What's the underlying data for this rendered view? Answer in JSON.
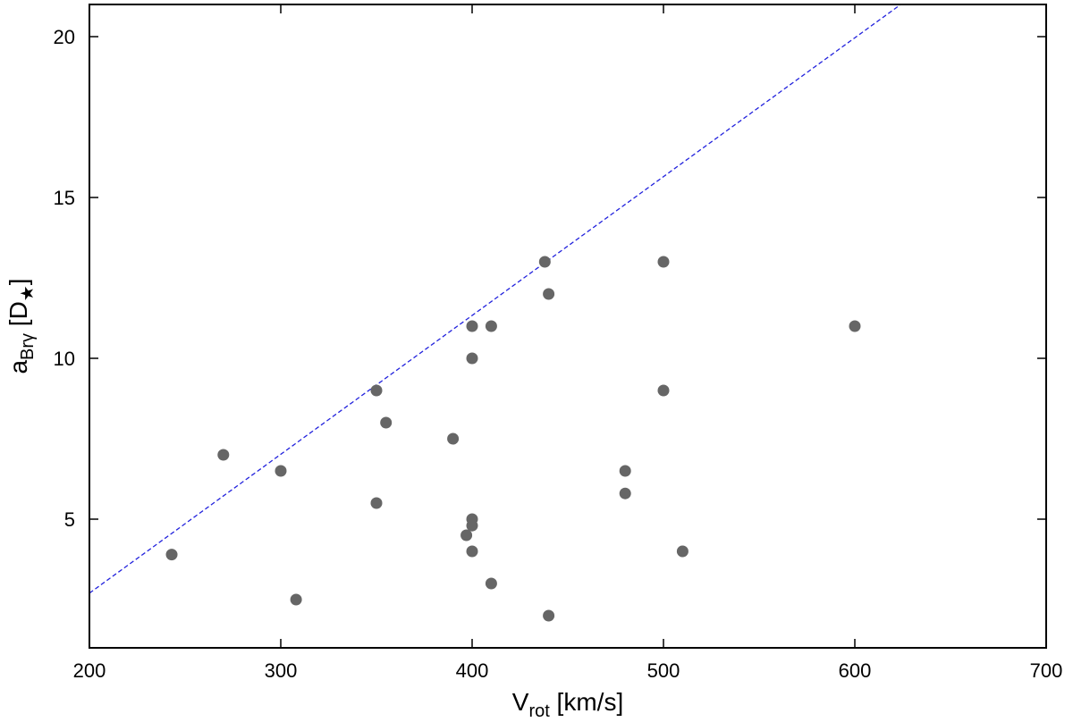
{
  "chart_data": {
    "type": "scatter",
    "title": "",
    "xlabel": {
      "main": "V",
      "sub": "rot",
      "rest": " [km/s]"
    },
    "ylabel": {
      "main": "a",
      "sub": "Brγ",
      "rest": " [D",
      "sub2": "★",
      "end": "]"
    },
    "xlim": [
      200,
      700
    ],
    "ylim": [
      1,
      21
    ],
    "xticks": [
      200,
      300,
      400,
      500,
      600,
      700
    ],
    "yticks": [
      5,
      10,
      15,
      20
    ],
    "grid": false,
    "legend": false,
    "point_color": "#666666",
    "line_color": "#2222dd",
    "fit_line": {
      "x": [
        200,
        624
      ],
      "y": [
        2.7,
        21
      ]
    },
    "points": [
      {
        "x": 243,
        "y": 3.9
      },
      {
        "x": 270,
        "y": 7.0
      },
      {
        "x": 300,
        "y": 6.5
      },
      {
        "x": 308,
        "y": 2.5
      },
      {
        "x": 350,
        "y": 9.0
      },
      {
        "x": 350,
        "y": 5.5
      },
      {
        "x": 355,
        "y": 8.0
      },
      {
        "x": 390,
        "y": 7.5
      },
      {
        "x": 397,
        "y": 4.5
      },
      {
        "x": 400,
        "y": 11.0
      },
      {
        "x": 400,
        "y": 10.0
      },
      {
        "x": 400,
        "y": 5.0
      },
      {
        "x": 400,
        "y": 4.8
      },
      {
        "x": 400,
        "y": 4.0
      },
      {
        "x": 410,
        "y": 11.0
      },
      {
        "x": 410,
        "y": 3.0
      },
      {
        "x": 438,
        "y": 13.0
      },
      {
        "x": 440,
        "y": 12.0
      },
      {
        "x": 440,
        "y": 2.0
      },
      {
        "x": 480,
        "y": 6.5
      },
      {
        "x": 480,
        "y": 5.8
      },
      {
        "x": 500,
        "y": 13.0
      },
      {
        "x": 500,
        "y": 9.0
      },
      {
        "x": 510,
        "y": 4.0
      },
      {
        "x": 600,
        "y": 11.0
      }
    ]
  }
}
